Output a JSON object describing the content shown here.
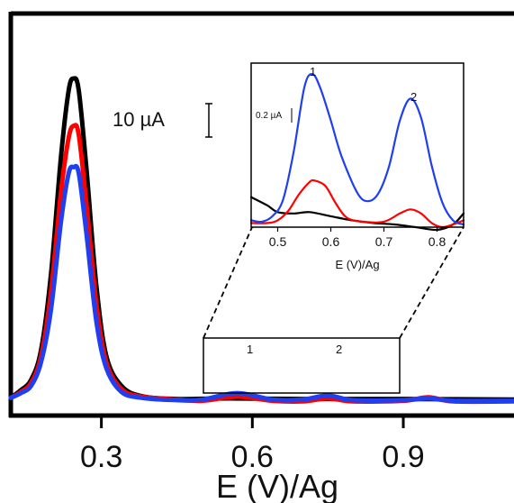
{
  "chart_data": [
    {
      "type": "line",
      "title": "",
      "xlabel": "E (V)/Ag",
      "ylabel": "",
      "xlim": [
        0.12,
        1.12
      ],
      "ylim": [
        -2,
        66
      ],
      "x_ticks": [
        0.3,
        0.6,
        0.9
      ],
      "x_tick_labels": [
        "0.3",
        "0.6",
        "0.9"
      ],
      "scale_bar": {
        "label": "10 µA",
        "value": 10
      },
      "peak_labels": [
        {
          "text": "1",
          "x": 0.57
        },
        {
          "text": "2",
          "x": 0.75
        }
      ],
      "zoom_box": {
        "xlim": [
          0.46,
          0.86
        ]
      },
      "legend": "none",
      "grid": false,
      "colors": {
        "black": "#000000",
        "red": "#ff0000",
        "blue": "#1f3ff0"
      },
      "series": [
        {
          "color": "black",
          "x": [
            0.12,
            0.14,
            0.16,
            0.18,
            0.2,
            0.22,
            0.235,
            0.245,
            0.255,
            0.27,
            0.29,
            0.31,
            0.34,
            0.38,
            0.45,
            0.55,
            0.7,
            0.9,
            1.12
          ],
          "y": [
            1,
            2.3,
            4,
            9,
            22,
            42,
            53,
            55,
            53,
            40,
            20,
            8,
            3,
            1.3,
            0.8,
            0.9,
            0.8,
            0.8,
            0.7
          ]
        },
        {
          "color": "red",
          "x": [
            0.12,
            0.14,
            0.16,
            0.18,
            0.2,
            0.22,
            0.235,
            0.245,
            0.255,
            0.27,
            0.29,
            0.31,
            0.34,
            0.38,
            0.45,
            0.5,
            0.57,
            0.64,
            0.7,
            0.75,
            0.8,
            0.9,
            0.95,
            1.0,
            1.12
          ],
          "y": [
            1,
            2,
            3.5,
            8,
            19,
            36,
            45,
            47,
            45.5,
            34,
            17,
            7,
            2.5,
            1.2,
            0.7,
            0.5,
            1.2,
            0.5,
            0.4,
            0.9,
            0.4,
            0.5,
            1.1,
            0.4,
            0.4
          ]
        },
        {
          "color": "blue",
          "x": [
            0.12,
            0.14,
            0.16,
            0.18,
            0.2,
            0.22,
            0.235,
            0.245,
            0.255,
            0.27,
            0.29,
            0.31,
            0.34,
            0.38,
            0.45,
            0.5,
            0.57,
            0.64,
            0.7,
            0.75,
            0.8,
            0.9,
            0.95,
            1.0,
            1.12
          ],
          "y": [
            1,
            1.8,
            3,
            7,
            16,
            31,
            39,
            40,
            39,
            29,
            14,
            6,
            2,
            1,
            0.6,
            0.7,
            1.8,
            0.7,
            0.7,
            1.4,
            0.6,
            0.6,
            0.9,
            0.5,
            0.5
          ]
        }
      ]
    },
    {
      "type": "line",
      "title": "",
      "xlabel": "E (V)/Ag",
      "ylabel": "",
      "xlim": [
        0.45,
        0.85
      ],
      "ylim": [
        0,
        1.2
      ],
      "x_ticks": [
        0.5,
        0.6,
        0.7,
        0.8
      ],
      "x_tick_labels": [
        "0.5",
        "0.6",
        "0.7",
        "0.8"
      ],
      "scale_bar": {
        "label": "0.2 µA",
        "value": 0.2
      },
      "peak_labels": [
        {
          "text": "1",
          "x": 0.565
        },
        {
          "text": "2",
          "x": 0.75
        }
      ],
      "legend": "none",
      "grid": false,
      "series": [
        {
          "color": "black",
          "x": [
            0.45,
            0.48,
            0.5,
            0.53,
            0.56,
            0.6,
            0.64,
            0.68,
            0.72,
            0.76,
            0.8,
            0.83,
            0.85
          ],
          "y": [
            0.22,
            0.16,
            0.11,
            0.1,
            0.11,
            0.08,
            0.05,
            0.03,
            0.02,
            0.0,
            -0.02,
            0.02,
            0.1
          ]
        },
        {
          "color": "red",
          "x": [
            0.45,
            0.48,
            0.5,
            0.52,
            0.54,
            0.56,
            0.57,
            0.59,
            0.61,
            0.63,
            0.66,
            0.7,
            0.73,
            0.75,
            0.77,
            0.79,
            0.81,
            0.83,
            0.85
          ],
          "y": [
            0.03,
            0.03,
            0.05,
            0.12,
            0.24,
            0.33,
            0.34,
            0.3,
            0.17,
            0.07,
            0.04,
            0.04,
            0.1,
            0.13,
            0.1,
            0.03,
            0.0,
            0.02,
            0.05
          ]
        },
        {
          "color": "blue",
          "x": [
            0.45,
            0.47,
            0.49,
            0.51,
            0.53,
            0.55,
            0.565,
            0.58,
            0.6,
            0.62,
            0.65,
            0.67,
            0.69,
            0.71,
            0.73,
            0.75,
            0.77,
            0.79,
            0.81,
            0.83,
            0.85
          ],
          "y": [
            0.05,
            0.04,
            0.08,
            0.2,
            0.55,
            1.02,
            1.12,
            1.02,
            0.78,
            0.52,
            0.25,
            0.19,
            0.25,
            0.45,
            0.78,
            0.94,
            0.8,
            0.45,
            0.18,
            0.05,
            0.02
          ]
        }
      ]
    }
  ]
}
